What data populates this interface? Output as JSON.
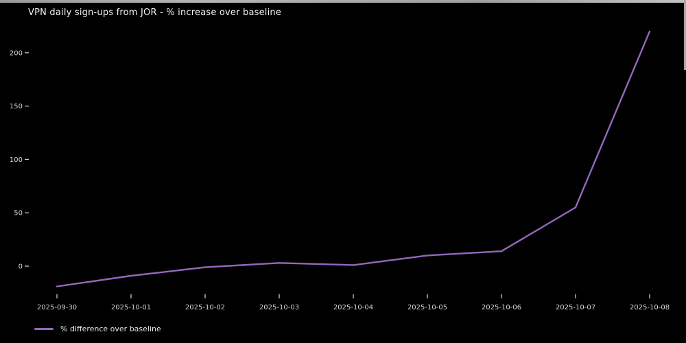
{
  "title": "VPN daily sign-ups from JOR - % increase over baseline",
  "legend": {
    "label": "% difference over baseline",
    "swatch_color": "#9467bd"
  },
  "colors": {
    "background": "#000000",
    "line": "#9467bd",
    "title_text": "#f2f2f2",
    "tick_text": "#d9d9d9",
    "tick_mark": "#cccccc",
    "window_border": "#a8a8a8"
  },
  "chart_data": {
    "type": "line",
    "title": "VPN daily sign-ups from JOR - % increase over baseline",
    "x": [
      "2025-09-30",
      "2025-10-01",
      "2025-10-02",
      "2025-10-03",
      "2025-10-04",
      "2025-10-05",
      "2025-10-06",
      "2025-10-07",
      "2025-10-08"
    ],
    "series": [
      {
        "name": "% difference over baseline",
        "color": "#9467bd",
        "values": [
          -19,
          -9,
          -1,
          3,
          1,
          10,
          14,
          55,
          220
        ]
      }
    ],
    "xlabel": "",
    "ylabel": "",
    "yticks": [
      0,
      50,
      100,
      150,
      200
    ],
    "ylim": [
      -25,
      230
    ],
    "grid": false,
    "legend_position": "lower-left",
    "background": "#000000"
  }
}
